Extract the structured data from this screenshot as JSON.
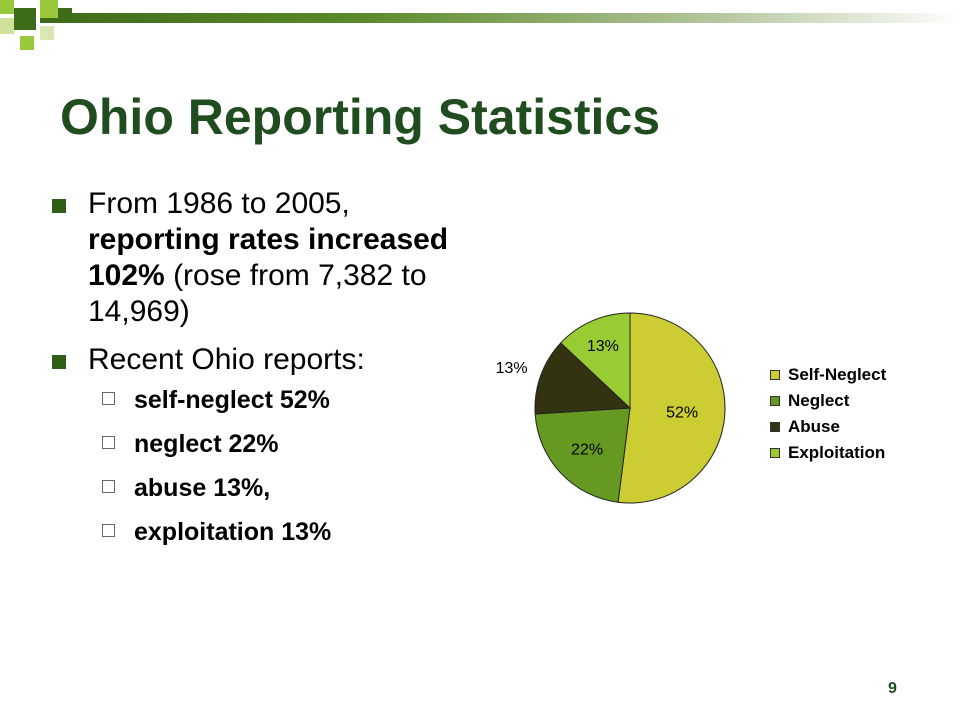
{
  "slide": {
    "title": "Ohio Reporting Statistics",
    "slide_number": "9",
    "accent_color": "#1f4d1f"
  },
  "bullets": {
    "b1_part1": "From 1986 to 2005, ",
    "b1_bold": "reporting rates increased 102%",
    "b1_part2": " (rose from 7,382 to 14,969)",
    "b2": "Recent Ohio reports:",
    "sub_items": [
      "self-neglect 52%",
      "neglect 22%",
      "abuse 13%,",
      "exploitation 13%"
    ]
  },
  "chart_data": {
    "type": "pie",
    "categories": [
      "Self-Neglect",
      "Neglect",
      "Abuse",
      "Exploitation"
    ],
    "values": [
      52,
      22,
      13,
      13
    ],
    "labels": [
      "52%",
      "22%",
      "13%",
      "13%"
    ],
    "colors": [
      "#cccc33",
      "#669922",
      "#333311",
      "#99cc33"
    ],
    "legend_position": "right"
  }
}
